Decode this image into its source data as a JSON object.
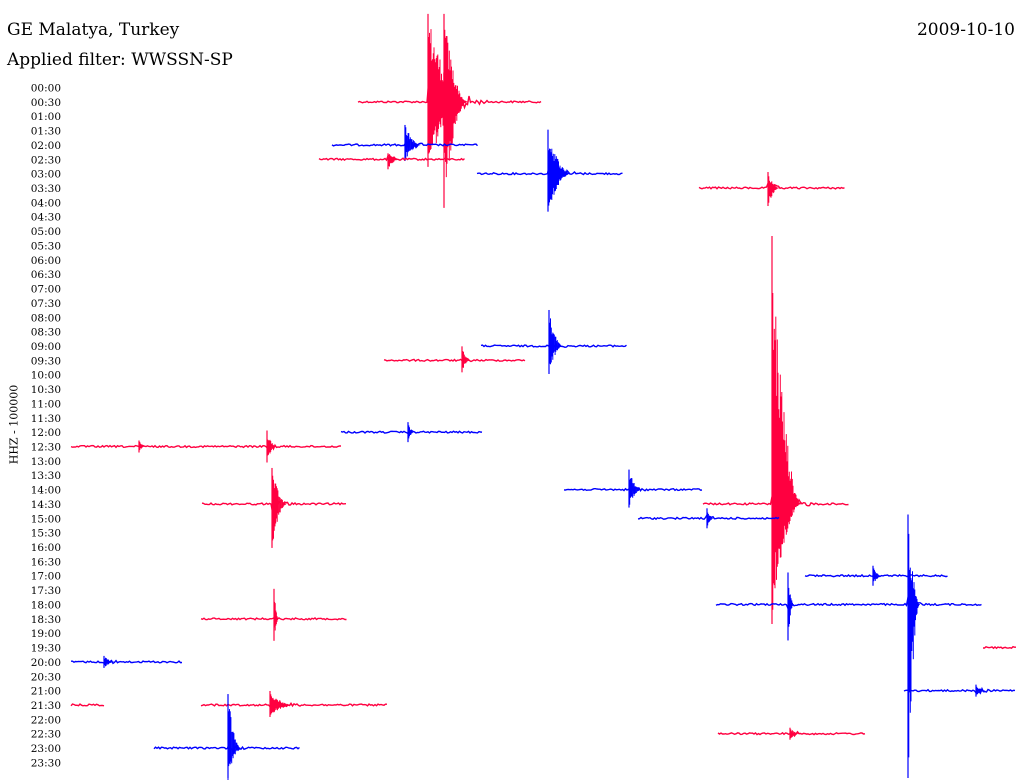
{
  "header": {
    "station": "GE Malatya, Turkey",
    "date": "2009-10-10",
    "filter": "Applied filter: WWSSN-SP"
  },
  "chart_data": {
    "type": "line",
    "title": "GE Malatya, Turkey",
    "ylabel": "HHZ - 100000",
    "time_labels": [
      "00:00",
      "00:30",
      "01:00",
      "01:30",
      "02:00",
      "02:30",
      "03:00",
      "03:30",
      "04:00",
      "04:30",
      "05:00",
      "05:30",
      "06:00",
      "06:30",
      "07:00",
      "07:30",
      "08:00",
      "08:30",
      "09:00",
      "09:30",
      "10:00",
      "10:30",
      "11:00",
      "11:30",
      "12:00",
      "12:30",
      "13:00",
      "13:30",
      "14:00",
      "14:30",
      "15:00",
      "15:30",
      "16:00",
      "16:30",
      "17:00",
      "17:30",
      "18:00",
      "18:30",
      "19:00",
      "19:30",
      "20:00",
      "20:30",
      "21:00",
      "21:30",
      "22:00",
      "22:30",
      "23:00",
      "23:30"
    ],
    "colors": {
      "a": "#ff0040",
      "b": "#0000ff"
    },
    "traces": [
      {
        "row": 1,
        "color": "a",
        "start": 358,
        "end": 542,
        "events": [
          {
            "x": 428,
            "up": 88,
            "down": 65,
            "decay": 70,
            "amp": 22
          },
          {
            "x": 444,
            "up": 88,
            "down": 106,
            "decay": 40,
            "amp": 10
          }
        ]
      },
      {
        "row": 4,
        "color": "b",
        "start": 332,
        "end": 478,
        "events": [
          {
            "x": 405,
            "up": 20,
            "down": 16,
            "decay": 28,
            "amp": 7
          }
        ]
      },
      {
        "row": 5,
        "color": "a",
        "start": 319,
        "end": 465,
        "events": [
          {
            "x": 388,
            "up": 6,
            "down": 10,
            "decay": 20,
            "amp": 4
          }
        ]
      },
      {
        "row": 6,
        "color": "b",
        "start": 477,
        "end": 623,
        "events": [
          {
            "x": 548,
            "up": 44,
            "down": 38,
            "decay": 40,
            "amp": 10
          }
        ]
      },
      {
        "row": 7,
        "color": "a",
        "start": 699,
        "end": 845,
        "events": [
          {
            "x": 768,
            "up": 16,
            "down": 18,
            "decay": 20,
            "amp": 5
          }
        ]
      },
      {
        "row": 18,
        "color": "b",
        "start": 481,
        "end": 627,
        "events": [
          {
            "x": 549,
            "up": 36,
            "down": 28,
            "decay": 24,
            "amp": 5
          }
        ]
      },
      {
        "row": 19,
        "color": "a",
        "start": 384,
        "end": 525,
        "events": [
          {
            "x": 462,
            "up": 14,
            "down": 12,
            "decay": 14,
            "amp": 3
          }
        ]
      },
      {
        "row": 24,
        "color": "b",
        "start": 341,
        "end": 483,
        "events": [
          {
            "x": 408,
            "up": 10,
            "down": 10,
            "decay": 10,
            "amp": 2
          }
        ]
      },
      {
        "row": 25,
        "color": "a",
        "start": 71,
        "end": 342,
        "events": [
          {
            "x": 139,
            "up": 6,
            "down": 6,
            "decay": 10,
            "amp": 2
          },
          {
            "x": 267,
            "up": 16,
            "down": 16,
            "decay": 16,
            "amp": 4
          }
        ]
      },
      {
        "row": 28,
        "color": "b",
        "start": 564,
        "end": 703,
        "events": [
          {
            "x": 629,
            "up": 20,
            "down": 18,
            "decay": 22,
            "amp": 5
          }
        ]
      },
      {
        "row": 29,
        "color": "a",
        "start": 202,
        "end": 347,
        "events": [
          {
            "x": 272,
            "up": 36,
            "down": 44,
            "decay": 26,
            "amp": 8
          }
        ]
      },
      {
        "row": 29,
        "color": "a",
        "start": 703,
        "end": 849,
        "events": [
          {
            "x": 772,
            "up": 268,
            "down": 120,
            "decay": 50,
            "amp": 16
          }
        ]
      },
      {
        "row": 30,
        "color": "b",
        "start": 638,
        "end": 780,
        "events": [
          {
            "x": 707,
            "up": 10,
            "down": 10,
            "decay": 12,
            "amp": 3
          }
        ]
      },
      {
        "row": 34,
        "color": "b",
        "start": 805,
        "end": 948,
        "events": [
          {
            "x": 873,
            "up": 10,
            "down": 10,
            "decay": 14,
            "amp": 3
          }
        ]
      },
      {
        "row": 36,
        "color": "b",
        "start": 716,
        "end": 982,
        "events": [
          {
            "x": 788,
            "up": 32,
            "down": 36,
            "decay": 10,
            "amp": 3
          },
          {
            "x": 908,
            "up": 90,
            "down": 176,
            "decay": 20,
            "amp": 8
          }
        ]
      },
      {
        "row": 37,
        "color": "a",
        "start": 201,
        "end": 347,
        "events": [
          {
            "x": 274,
            "up": 30,
            "down": 22,
            "decay": 8,
            "amp": 2
          }
        ]
      },
      {
        "row": 39,
        "color": "a",
        "start": 983,
        "end": 1016,
        "events": []
      },
      {
        "row": 40,
        "color": "b",
        "start": 71,
        "end": 182,
        "events": [
          {
            "x": 104,
            "up": 6,
            "down": 6,
            "decay": 20,
            "amp": 3
          }
        ]
      },
      {
        "row": 42,
        "color": "b",
        "start": 904,
        "end": 1016,
        "events": [
          {
            "x": 976,
            "up": 6,
            "down": 6,
            "decay": 18,
            "amp": 3
          }
        ]
      },
      {
        "row": 43,
        "color": "a",
        "start": 71,
        "end": 105,
        "events": []
      },
      {
        "row": 43,
        "color": "a",
        "start": 201,
        "end": 388,
        "events": [
          {
            "x": 270,
            "up": 14,
            "down": 12,
            "decay": 40,
            "amp": 4
          }
        ]
      },
      {
        "row": 45,
        "color": "a",
        "start": 718,
        "end": 866,
        "events": [
          {
            "x": 790,
            "up": 6,
            "down": 6,
            "decay": 18,
            "amp": 3
          }
        ]
      },
      {
        "row": 46,
        "color": "b",
        "start": 154,
        "end": 300,
        "events": [
          {
            "x": 228,
            "up": 54,
            "down": 34,
            "decay": 22,
            "amp": 6
          }
        ]
      }
    ]
  }
}
